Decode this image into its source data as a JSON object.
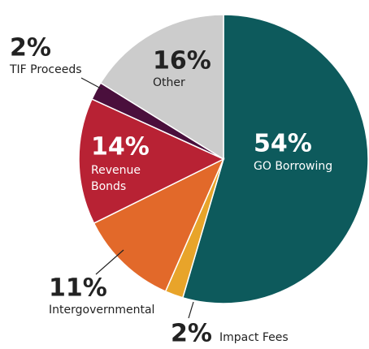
{
  "chart_data": {
    "type": "pie",
    "categories": [
      "GO Borrowing",
      "Impact Fees",
      "Intergovernmental",
      "Revenue Bonds",
      "TIF Proceeds",
      "Other"
    ],
    "values": [
      54,
      2,
      11,
      14,
      2,
      16
    ],
    "value_labels": [
      "54%",
      "2%",
      "11%",
      "14%",
      "2%",
      "16%"
    ],
    "colors": [
      "#0d5a5c",
      "#e8a42a",
      "#e2692a",
      "#b82234",
      "#4a0f3c",
      "#cccccc"
    ]
  }
}
